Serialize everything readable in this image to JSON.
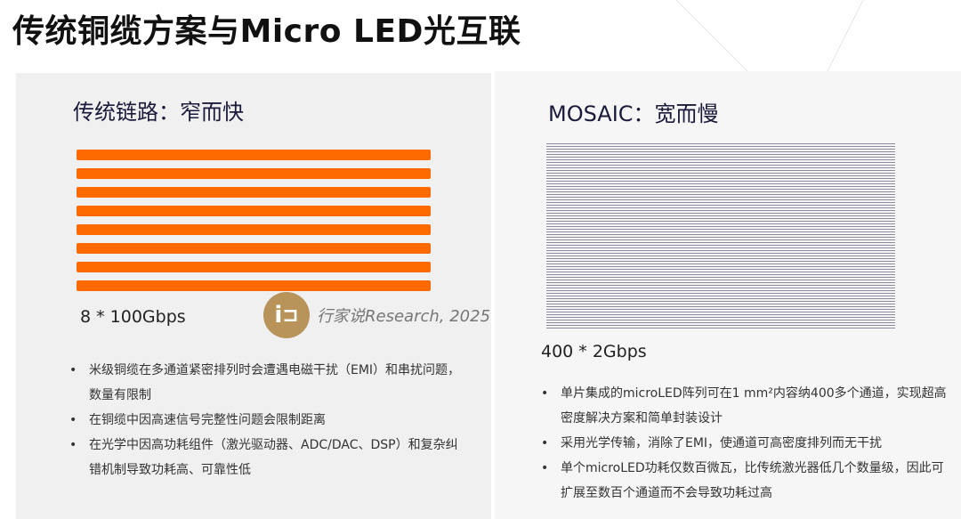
{
  "title": "传统铜缆方案与Micro LED光互联",
  "left": {
    "heading": "传统链路：窄而快",
    "bar_count": 8,
    "bar_color": "#ff6a00",
    "rate": "8 * 100Gbps",
    "bullets": [
      "米级铜缆在多通道紧密排列时会遭遇电磁干扰（EMI）和串扰问题，数量有限制",
      "在铜缆中因高速信号完整性问题会限制距离",
      "在光学中因高功耗组件（激光驱动器、ADC/DAC、DSP）和复杂纠错机制导致功耗高、可靠性低"
    ]
  },
  "right": {
    "heading": "MOSAIC：宽而慢",
    "rate": "400 * 2Gbps",
    "bullets": [
      "单片集成的microLED阵列可在1 mm²内容纳400多个通道，实现超高密度解决方案和简单封装设计",
      "采用光学传输，消除了EMI，使通道可高密度排列而无干扰",
      "单个microLED功耗仅数百微瓦，比传统激光器低几个数量级，因此可扩展至数百个通道而不会导致功耗过高"
    ]
  },
  "watermark": {
    "logo": "iコ",
    "text": "行家说Research, 2025"
  }
}
